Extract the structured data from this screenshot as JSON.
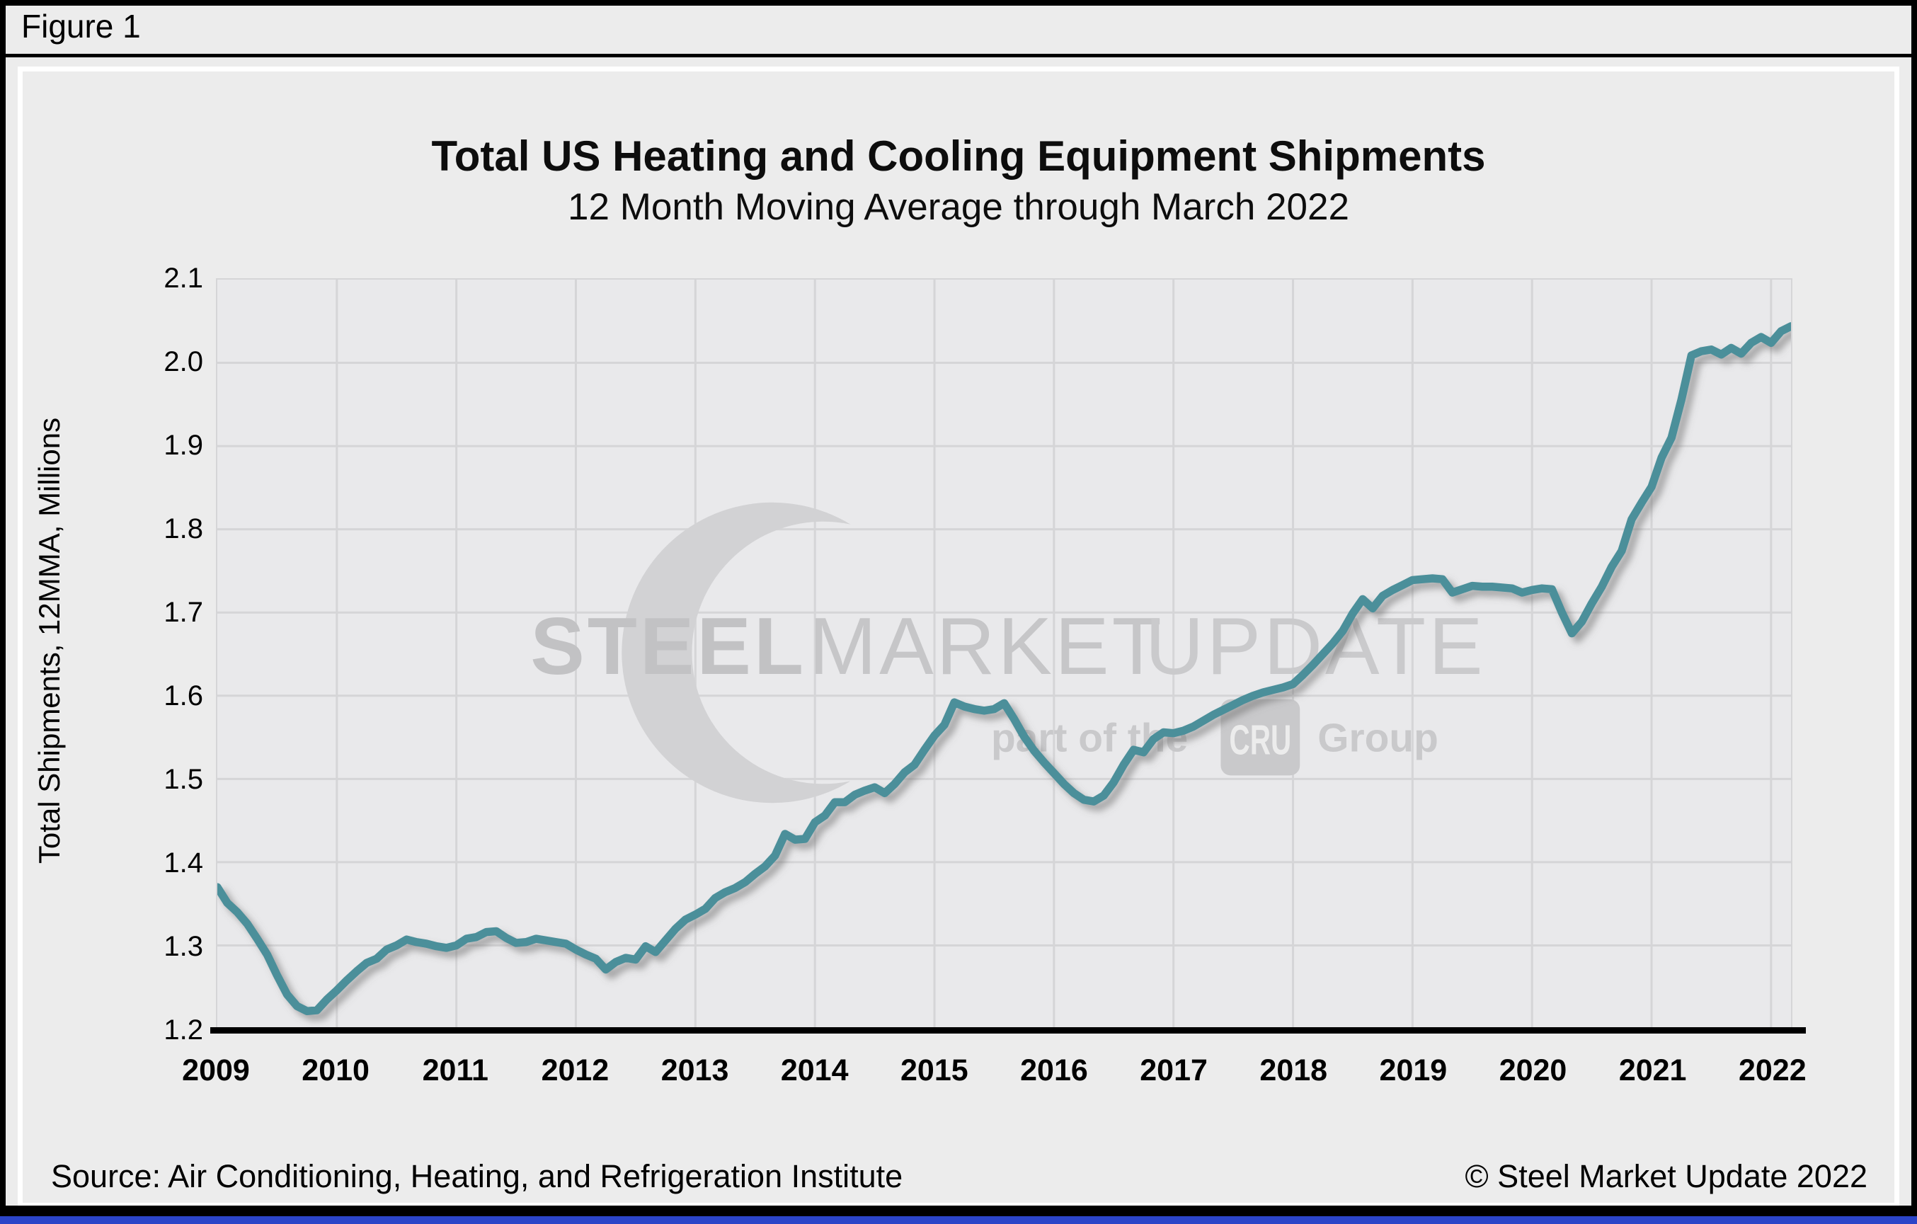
{
  "figure_label": "Figure 1",
  "chart": {
    "title": "Total US Heating and Cooling Equipment Shipments",
    "subtitle": "12 Month Moving Average through March 2022",
    "y_axis_title": "Total Shipments, 12MMA, Millions",
    "source_note": "Source: Air Conditioning, Heating, and Refrigeration Institute",
    "copyright": "© Steel Market Update 2022"
  },
  "watermark": {
    "word1": "STEEL",
    "word2": "MARKET",
    "word3": "UPDATE",
    "tagline_prefix": "part of the",
    "logo_box": "CRU",
    "tagline_suffix": "Group"
  },
  "chart_data": {
    "type": "line",
    "title": "Total US Heating and Cooling Equipment Shipments",
    "subtitle": "12 Month Moving Average through March 2022",
    "xlabel": "",
    "ylabel": "Total Shipments, 12MMA, Millions",
    "frequency": "monthly",
    "x_start": "2009-01",
    "x_end": "2022-03",
    "x_tick_labels": [
      "2009",
      "2010",
      "2011",
      "2012",
      "2013",
      "2014",
      "2015",
      "2016",
      "2017",
      "2018",
      "2019",
      "2020",
      "2021",
      "2022"
    ],
    "y_ticks": [
      2.1,
      2.0,
      1.9,
      1.8,
      1.7,
      1.6,
      1.5,
      1.4,
      1.3,
      1.2
    ],
    "ylim": [
      1.2,
      2.1
    ],
    "grid": true,
    "legend_position": "none",
    "line_color": "#4B8F9A",
    "series": [
      {
        "name": "Total US heating and cooling equipment shipments, 12-month moving average (millions)",
        "values": [
          1.37,
          1.351,
          1.34,
          1.326,
          1.308,
          1.289,
          1.264,
          1.241,
          1.227,
          1.221,
          1.222,
          1.235,
          1.246,
          1.258,
          1.269,
          1.279,
          1.284,
          1.295,
          1.3,
          1.307,
          1.304,
          1.302,
          1.299,
          1.297,
          1.3,
          1.308,
          1.31,
          1.316,
          1.317,
          1.309,
          1.303,
          1.304,
          1.308,
          1.306,
          1.304,
          1.302,
          1.295,
          1.289,
          1.284,
          1.271,
          1.28,
          1.285,
          1.283,
          1.299,
          1.292,
          1.306,
          1.32,
          1.331,
          1.337,
          1.344,
          1.357,
          1.364,
          1.369,
          1.376,
          1.386,
          1.395,
          1.408,
          1.434,
          1.427,
          1.428,
          1.448,
          1.456,
          1.472,
          1.472,
          1.481,
          1.486,
          1.49,
          1.483,
          1.494,
          1.508,
          1.517,
          1.535,
          1.552,
          1.565,
          1.592,
          1.587,
          1.584,
          1.582,
          1.584,
          1.591,
          1.572,
          1.551,
          1.534,
          1.52,
          1.507,
          1.494,
          1.483,
          1.475,
          1.473,
          1.48,
          1.496,
          1.517,
          1.535,
          1.532,
          1.548,
          1.556,
          1.555,
          1.558,
          1.563,
          1.57,
          1.577,
          1.583,
          1.589,
          1.595,
          1.6,
          1.604,
          1.607,
          1.61,
          1.614,
          1.625,
          1.637,
          1.65,
          1.663,
          1.678,
          1.699,
          1.716,
          1.705,
          1.72,
          1.727,
          1.733,
          1.739,
          1.74,
          1.741,
          1.74,
          1.724,
          1.728,
          1.732,
          1.731,
          1.731,
          1.73,
          1.729,
          1.724,
          1.727,
          1.729,
          1.728,
          1.7,
          1.675,
          1.689,
          1.711,
          1.731,
          1.755,
          1.774,
          1.812,
          1.832,
          1.851,
          1.886,
          1.91,
          1.956,
          2.009,
          2.014,
          2.016,
          2.01,
          2.018,
          2.011,
          2.024,
          2.031,
          2.024,
          2.038,
          2.044
        ]
      }
    ]
  }
}
